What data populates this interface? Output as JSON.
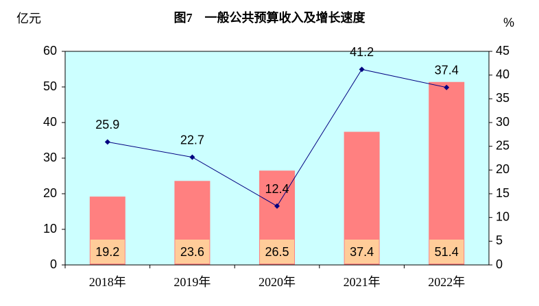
{
  "chart_data": {
    "type": "bar",
    "title": "图7　一般公共预算收入及增长速度",
    "ylabel": "亿元",
    "y2label": "%",
    "categories": [
      "2018年",
      "2019年",
      "2020年",
      "2021年",
      "2022年"
    ],
    "series": [
      {
        "type": "bar",
        "color": "#ff8080",
        "label_color": "#ffcc99",
        "values": [
          19.2,
          23.6,
          26.5,
          37.4,
          51.4
        ]
      },
      {
        "type": "line",
        "color": "#000080",
        "axis": "y2",
        "values": [
          25.9,
          22.7,
          12.4,
          41.2,
          37.4
        ]
      }
    ],
    "ylim": [
      0,
      60
    ],
    "yticks": [
      0,
      10,
      20,
      30,
      40,
      50,
      60
    ],
    "y2lim": [
      0,
      45
    ],
    "y2ticks": [
      0,
      5,
      10,
      15,
      20,
      25,
      30,
      35,
      40,
      45
    ],
    "background": "#ccffff"
  }
}
